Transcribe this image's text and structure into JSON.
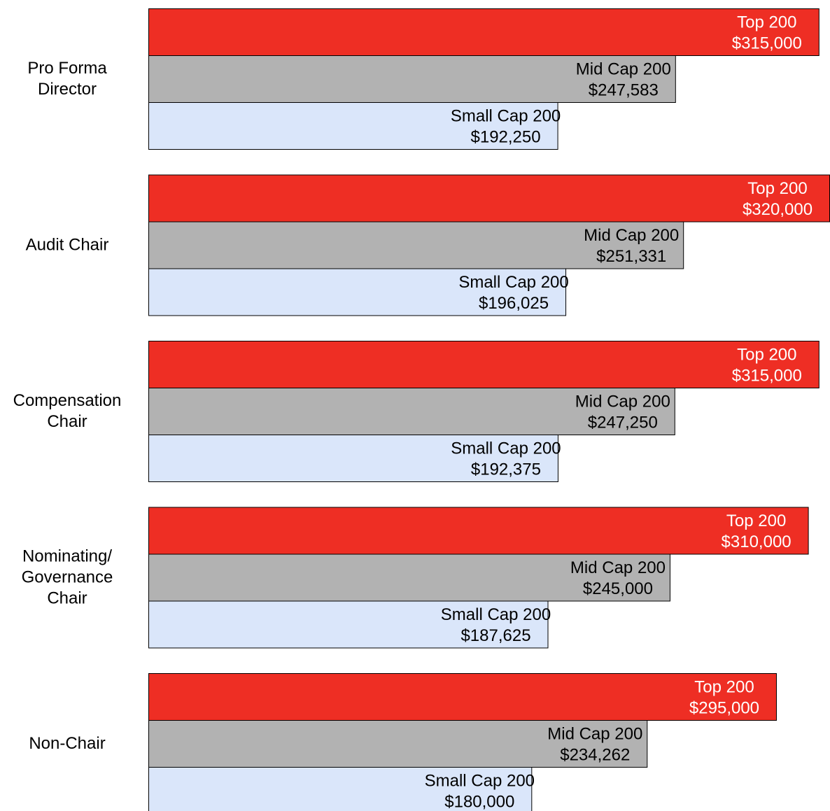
{
  "chart_data": {
    "type": "bar",
    "orientation": "horizontal",
    "grid": false,
    "legend": "none",
    "xlim": [
      0,
      320000
    ],
    "categories": [
      [
        "Pro Forma",
        "Director"
      ],
      [
        "Audit Chair"
      ],
      [
        "Compensation",
        "Chair"
      ],
      [
        "Nominating/",
        "Governance",
        "Chair"
      ],
      [
        "Non-Chair"
      ]
    ],
    "series": [
      {
        "name": "Top 200",
        "color": "#ee2e24",
        "text_color": "#ffffff",
        "values": [
          315000,
          320000,
          315000,
          310000,
          295000
        ],
        "labels": [
          "$315,000",
          "$320,000",
          "$315,000",
          "$310,000",
          "$295,000"
        ]
      },
      {
        "name": "Mid Cap 200",
        "color": "#b2b2b2",
        "text_color": "#000000",
        "values": [
          247583,
          251331,
          247250,
          245000,
          234262
        ],
        "labels": [
          "$247,583",
          "$251,331",
          "$247,250",
          "$245,000",
          "$234,262"
        ]
      },
      {
        "name": "Small Cap 200",
        "color": "#dae6fa",
        "text_color": "#000000",
        "values": [
          192250,
          196025,
          192375,
          187625,
          180000
        ],
        "labels": [
          "$192,250",
          "$196,025",
          "$192,375",
          "$187,625",
          "$180,000"
        ]
      }
    ]
  }
}
